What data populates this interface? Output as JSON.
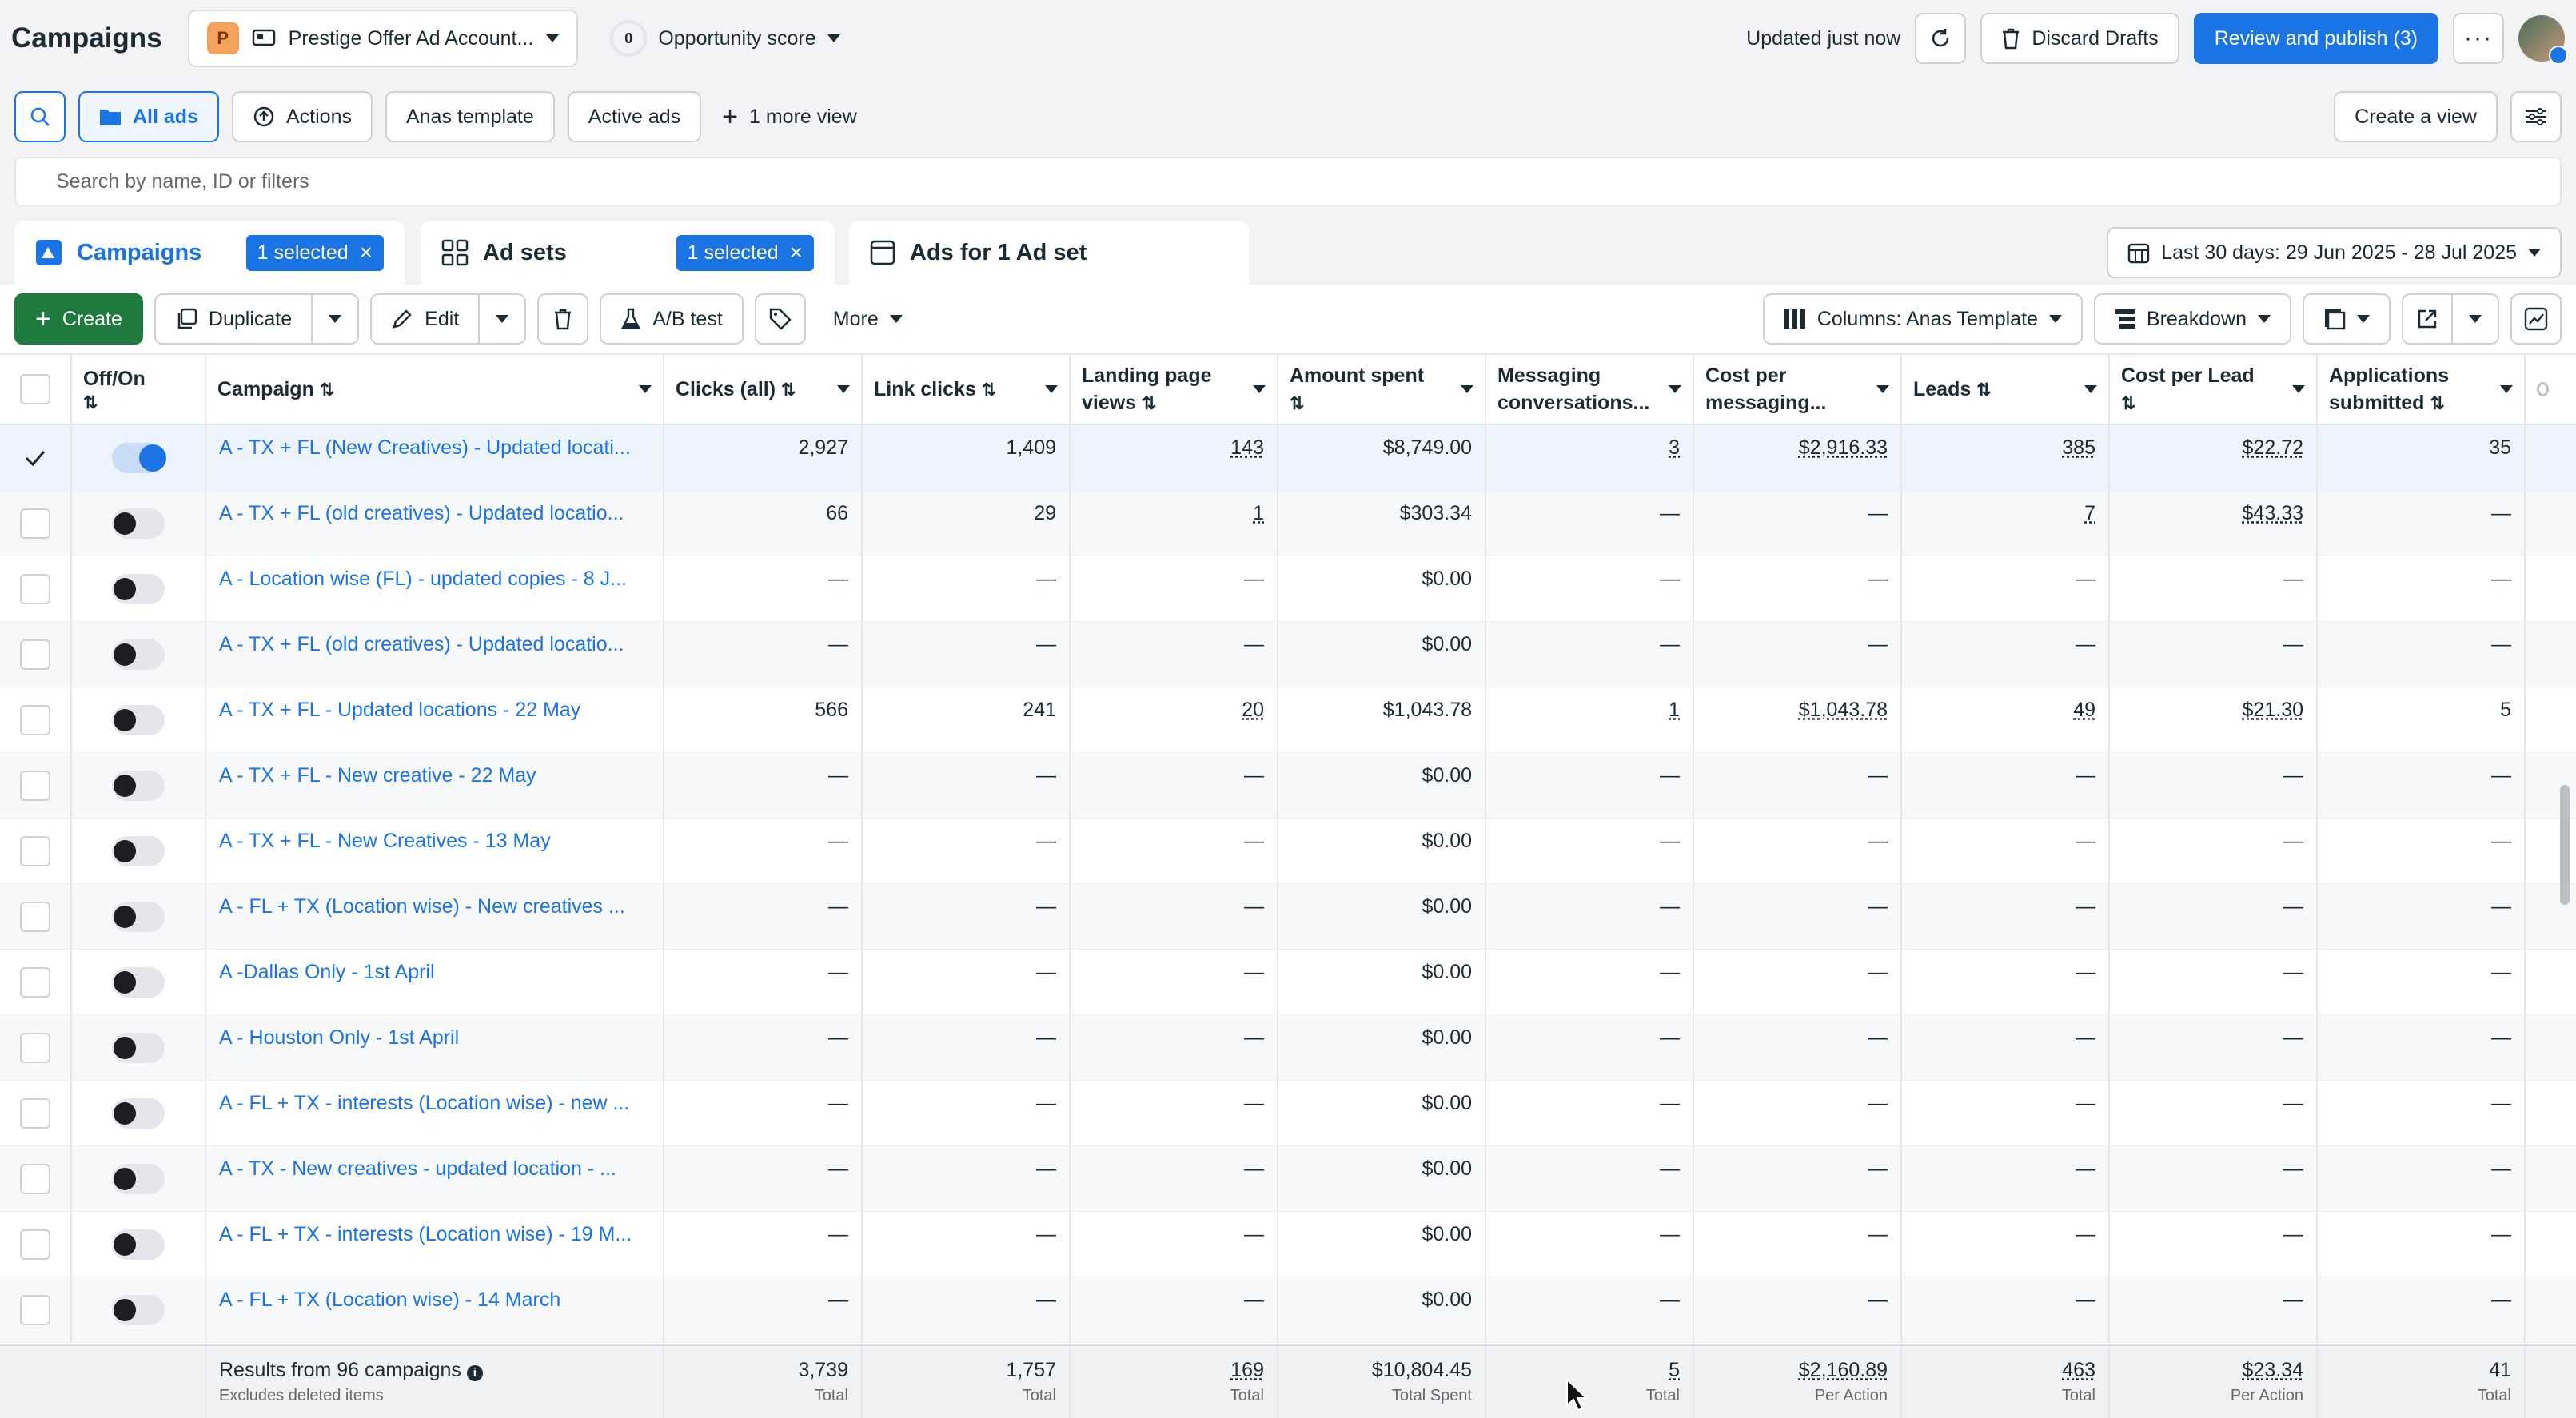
{
  "topbar": {
    "title": "Campaigns",
    "account_initial": "P",
    "account_name": "Prestige Offer Ad Account...",
    "opportunity_value": "0",
    "opportunity_label": "Opportunity score",
    "updated": "Updated just now",
    "discard": "Discard Drafts",
    "publish": "Review and publish (3)"
  },
  "views": {
    "all_ads": "All ads",
    "actions": "Actions",
    "anas_template": "Anas template",
    "active_ads": "Active ads",
    "more_view": "1 more view",
    "create_view": "Create a view"
  },
  "search": {
    "placeholder": "Search by name, ID or filters"
  },
  "tabs": {
    "campaigns": "Campaigns",
    "campaigns_selected": "1 selected",
    "adsets": "Ad sets",
    "adsets_selected": "1 selected",
    "ads": "Ads for 1 Ad set"
  },
  "date_range": "Last 30 days: 29 Jun 2025 - 28 Jul 2025",
  "toolbar": {
    "create": "Create",
    "duplicate": "Duplicate",
    "edit": "Edit",
    "ab_test": "A/B test",
    "more": "More",
    "columns": "Columns: Anas Template",
    "breakdown": "Breakdown"
  },
  "columns": {
    "offon": "Off/On",
    "campaign": "Campaign",
    "clicks": "Clicks (all)",
    "link_clicks": "Link clicks",
    "lpv_1": "Landing page",
    "lpv_2": "views",
    "spent_1": "Amount spent",
    "msg_1": "Messaging",
    "msg_2": "conversations...",
    "cpm_1": "Cost per",
    "cpm_2": "messaging...",
    "leads": "Leads",
    "cpl_1": "Cost per Lead",
    "apps_1": "Applications",
    "apps_2": "submitted"
  },
  "rows": [
    {
      "name": "A - TX + FL (New Creatives) - Updated locati...",
      "clicks": "2,927",
      "link": "1,409",
      "lpv": "143",
      "spent": "$8,749.00",
      "msg": "3",
      "cpm": "$2,916.33",
      "leads": "385",
      "cpl": "$22.72",
      "apps": "35"
    },
    {
      "name": "A - TX + FL (old creatives) - Updated locatio...",
      "clicks": "66",
      "link": "29",
      "lpv": "1",
      "spent": "$303.34",
      "msg": "—",
      "cpm": "—",
      "leads": "7",
      "cpl": "$43.33",
      "apps": "—"
    },
    {
      "name": "A - Location wise (FL) - updated copies - 8 J...",
      "clicks": "—",
      "link": "—",
      "lpv": "—",
      "spent": "$0.00",
      "msg": "—",
      "cpm": "—",
      "leads": "—",
      "cpl": "—",
      "apps": "—"
    },
    {
      "name": "A - TX + FL (old creatives) - Updated locatio...",
      "clicks": "—",
      "link": "—",
      "lpv": "—",
      "spent": "$0.00",
      "msg": "—",
      "cpm": "—",
      "leads": "—",
      "cpl": "—",
      "apps": "—"
    },
    {
      "name": "A - TX + FL - Updated locations - 22 May",
      "clicks": "566",
      "link": "241",
      "lpv": "20",
      "spent": "$1,043.78",
      "msg": "1",
      "cpm": "$1,043.78",
      "leads": "49",
      "cpl": "$21.30",
      "apps": "5"
    },
    {
      "name": "A - TX + FL - New creative - 22 May",
      "clicks": "—",
      "link": "—",
      "lpv": "—",
      "spent": "$0.00",
      "msg": "—",
      "cpm": "—",
      "leads": "—",
      "cpl": "—",
      "apps": "—"
    },
    {
      "name": "A - TX + FL - New Creatives - 13 May",
      "clicks": "—",
      "link": "—",
      "lpv": "—",
      "spent": "$0.00",
      "msg": "—",
      "cpm": "—",
      "leads": "—",
      "cpl": "—",
      "apps": "—"
    },
    {
      "name": "A - FL + TX (Location wise) - New creatives ...",
      "clicks": "—",
      "link": "—",
      "lpv": "—",
      "spent": "$0.00",
      "msg": "—",
      "cpm": "—",
      "leads": "—",
      "cpl": "—",
      "apps": "—"
    },
    {
      "name": "A -Dallas Only - 1st April",
      "clicks": "—",
      "link": "—",
      "lpv": "—",
      "spent": "$0.00",
      "msg": "—",
      "cpm": "—",
      "leads": "—",
      "cpl": "—",
      "apps": "—"
    },
    {
      "name": "A - Houston Only - 1st April",
      "clicks": "—",
      "link": "—",
      "lpv": "—",
      "spent": "$0.00",
      "msg": "—",
      "cpm": "—",
      "leads": "—",
      "cpl": "—",
      "apps": "—"
    },
    {
      "name": "A - FL + TX - interests (Location wise) - new ...",
      "clicks": "—",
      "link": "—",
      "lpv": "—",
      "spent": "$0.00",
      "msg": "—",
      "cpm": "—",
      "leads": "—",
      "cpl": "—",
      "apps": "—"
    },
    {
      "name": "A - TX - New creatives - updated location - ...",
      "clicks": "—",
      "link": "—",
      "lpv": "—",
      "spent": "$0.00",
      "msg": "—",
      "cpm": "—",
      "leads": "—",
      "cpl": "—",
      "apps": "—"
    },
    {
      "name": "A - FL + TX - interests (Location wise) - 19 M...",
      "clicks": "—",
      "link": "—",
      "lpv": "—",
      "spent": "$0.00",
      "msg": "—",
      "cpm": "—",
      "leads": "—",
      "cpl": "—",
      "apps": "—"
    },
    {
      "name": "A - FL + TX (Location wise) - 14 March",
      "clicks": "—",
      "link": "—",
      "lpv": "—",
      "spent": "$0.00",
      "msg": "—",
      "cpm": "—",
      "leads": "—",
      "cpl": "—",
      "apps": "—"
    }
  ],
  "footer": {
    "results": "Results from 96 campaigns",
    "excludes": "Excludes deleted items",
    "clicks": "3,739",
    "clicks_sub": "Total",
    "link": "1,757",
    "link_sub": "Total",
    "lpv": "169",
    "lpv_sub": "Total",
    "spent": "$10,804.45",
    "spent_sub": "Total Spent",
    "msg": "5",
    "msg_sub": "Total",
    "cpm": "$2,160.89",
    "cpm_sub": "Per Action",
    "leads": "463",
    "leads_sub": "Total",
    "cpl": "$23.34",
    "cpl_sub": "Per Action",
    "apps": "41",
    "apps_sub": "Total"
  }
}
